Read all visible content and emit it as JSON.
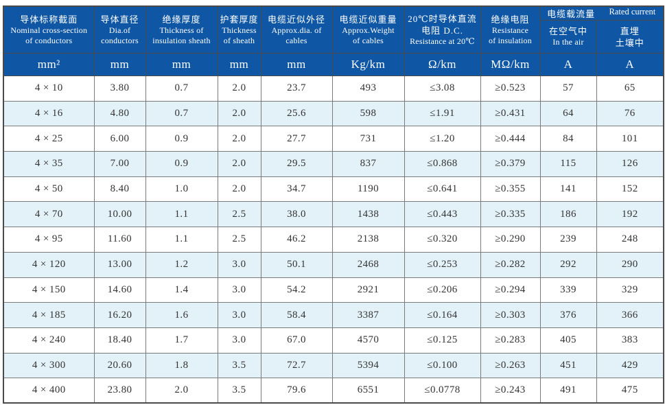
{
  "colors": {
    "header_bg": "#0f57a5",
    "header_text": "#ffffff",
    "row_bg": "#ffffff",
    "row_alt_bg": "#e3f1f8",
    "body_text": "#333333",
    "grid_line": "#7a7a7a",
    "header_line": "#4a4a4a",
    "outer_border": "#4a4a4a",
    "page_bg": "#ffffff"
  },
  "header": {
    "columns": [
      {
        "zh": "导体标称截面",
        "en": [
          "Nominal cross-section",
          "of conductors"
        ]
      },
      {
        "zh": "导体直径",
        "en": [
          "Dia.of",
          "conductors"
        ]
      },
      {
        "zh": "绝缘厚度",
        "en": [
          "Thickness of",
          "insulation sheath"
        ]
      },
      {
        "zh": "护套厚度",
        "en": [
          "Thickness",
          "of sheath"
        ]
      },
      {
        "zh": "电缆近似外径",
        "en": [
          "Approx.dia. of",
          "cables"
        ]
      },
      {
        "zh": "电缆近似重量",
        "en": [
          "Approx.Weight",
          "of cables"
        ]
      },
      {
        "zh": "20℃时导体直流",
        "en": [
          "电阻 D.C.",
          "Resistance at 20℃"
        ]
      },
      {
        "zh": "绝缘电阻",
        "en": [
          "Resistance",
          "of insulation"
        ]
      }
    ],
    "group": {
      "zh": "电缆载流量",
      "en": "Rated current"
    },
    "subcolumns": [
      {
        "lines": [
          "在空气中",
          "In the air"
        ]
      },
      {
        "lines": [
          "直埋",
          "土壤中"
        ]
      }
    ],
    "units": [
      "mm²",
      "mm",
      "mm",
      "mm",
      "mm",
      "Kg/km",
      "Ω/km",
      "MΩ/km",
      "A",
      "A"
    ]
  },
  "rows": [
    [
      "4 × 10",
      "3.80",
      "0.7",
      "2.0",
      "23.7",
      "493",
      "≤3.08",
      "≥0.523",
      "57",
      "65"
    ],
    [
      "4 × 16",
      "4.80",
      "0.7",
      "2.0",
      "25.6",
      "598",
      "≤1.91",
      "≥0.431",
      "64",
      "76"
    ],
    [
      "4 × 25",
      "6.00",
      "0.9",
      "2.0",
      "27.7",
      "731",
      "≤1.20",
      "≥0.444",
      "84",
      "101"
    ],
    [
      "4 × 35",
      "7.00",
      "0.9",
      "2.0",
      "29.5",
      "837",
      "≤0.868",
      "≥0.379",
      "115",
      "126"
    ],
    [
      "4 × 50",
      "8.40",
      "1.0",
      "2.0",
      "34.7",
      "1190",
      "≤0.641",
      "≥0.355",
      "141",
      "152"
    ],
    [
      "4 × 70",
      "10.00",
      "1.1",
      "2.5",
      "38.0",
      "1438",
      "≤0.443",
      "≥0.335",
      "186",
      "192"
    ],
    [
      "4 × 95",
      "11.60",
      "1.1",
      "2.5",
      "46.2",
      "2138",
      "≤0.320",
      "≥0.290",
      "239",
      "248"
    ],
    [
      "4 × 120",
      "13.00",
      "1.2",
      "3.0",
      "50.1",
      "2468",
      "≤0.253",
      "≥0.282",
      "292",
      "290"
    ],
    [
      "4 × 150",
      "14.60",
      "1.4",
      "3.0",
      "54.2",
      "2921",
      "≤0.206",
      "≥0.294",
      "339",
      "329"
    ],
    [
      "4 × 185",
      "16.20",
      "1.6",
      "3.0",
      "58.4",
      "3387",
      "≤0.164",
      "≥0.303",
      "376",
      "366"
    ],
    [
      "4 × 240",
      "18.40",
      "1.7",
      "3.0",
      "67.0",
      "4570",
      "≤0.125",
      "≥0.283",
      "405",
      "383"
    ],
    [
      "4 × 300",
      "20.60",
      "1.8",
      "3.5",
      "72.7",
      "5394",
      "≤0.100",
      "≥0.263",
      "451",
      "429"
    ],
    [
      "4 × 400",
      "23.80",
      "2.0",
      "3.5",
      "79.6",
      "6551",
      "≤0.0778",
      "≥0.243",
      "491",
      "475"
    ]
  ]
}
